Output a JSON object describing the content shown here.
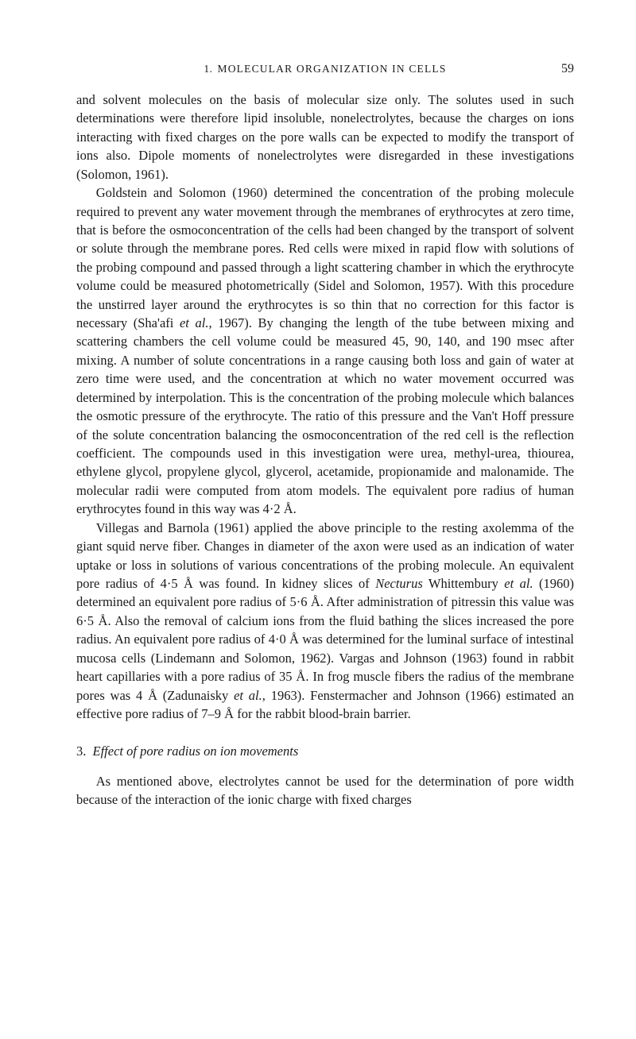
{
  "header": {
    "running_head_prefix": "1.",
    "running_head": "MOLECULAR ORGANIZATION IN CELLS",
    "page_number": "59"
  },
  "paragraphs": {
    "p1": "and solvent molecules on the basis of molecular size only. The solutes used in such determinations were therefore lipid insoluble, nonelectrolytes, because the charges on ions interacting with fixed charges on the pore walls can be expected to modify the transport of ions also. Dipole moments of nonelectrolytes were disregarded in these investigations (Solomon, 1961).",
    "p2_a": "Goldstein and Solomon (1960) determined the concentration of the probing molecule required to prevent any water movement through the membranes of erythrocytes at zero time, that is before the osmoconcentration of the cells had been changed by the transport of solvent or solute through the membrane pores. Red cells were mixed in rapid flow with solutions of the probing compound and passed through a light scattering chamber in which the erythrocyte volume could be measured photometrically (Sidel and Solomon, 1957). With this procedure the unstirred layer around the erythrocytes is so thin that no correction for this factor is necessary (Sha'afi ",
    "p2_et_al_1": "et al.",
    "p2_b": ", 1967). By changing the length of the tube between mixing and scattering chambers the cell volume could be measured 45, 90, 140, and 190 msec after mixing. A number of solute concentrations in a range causing both loss and gain of water at zero time were used, and the concentration at which no water movement occurred was determined by interpolation. This is the concentration of the probing molecule which balances the osmotic pressure of the erythrocyte. The ratio of this pressure and the Van't Hoff pressure of the solute concentration balancing the osmoconcentration of the red cell is the reflection coefficient. The compounds used in this investigation were urea, methyl-urea, thiourea, ethylene glycol, propylene glycol, glycerol, acetamide, propionamide and malonamide. The molecular radii were computed from atom models. The equivalent pore radius of human erythrocytes found in this way was 4·2 Å.",
    "p3_a": "Villegas and Barnola (1961) applied the above principle to the resting axolemma of the giant squid nerve fiber. Changes in diameter of the axon were used as an indication of water uptake or loss in solutions of various concentrations of the probing molecule. An equivalent pore radius of 4·5 Å was found. In kidney slices of ",
    "p3_necturus": "Necturus",
    "p3_b": " Whittembury ",
    "p3_et_al_1": "et al.",
    "p3_c": " (1960) determined an equivalent pore radius of 5·6 Å. After administration of pitressin this value was 6·5 Å. Also the removal of calcium ions from the fluid bathing the slices increased the pore radius. An equivalent pore radius of 4·0 Å was determined for the luminal surface of intestinal mucosa cells (Lindemann and Solomon, 1962). Vargas and Johnson (1963) found in rabbit heart capillaries with a pore radius of 35 Å. In frog muscle fibers the radius of the membrane pores was 4 Å (Zadunaisky ",
    "p3_et_al_2": "et al.",
    "p3_d": ", 1963). Fenstermacher and Johnson (1966) estimated an effective pore radius of 7–9 Å for the rabbit blood-brain barrier."
  },
  "section": {
    "number": "3.",
    "title": "Effect of pore radius on ion movements"
  },
  "paragraph4": "As mentioned above, electrolytes cannot be used for the determination of pore width because of the interaction of the ionic charge with fixed charges",
  "style": {
    "background_color": "#ffffff",
    "text_color": "#1a1a1a",
    "body_fontsize": 16.5,
    "line_height": 1.42,
    "header_fontsize": 13.5
  }
}
